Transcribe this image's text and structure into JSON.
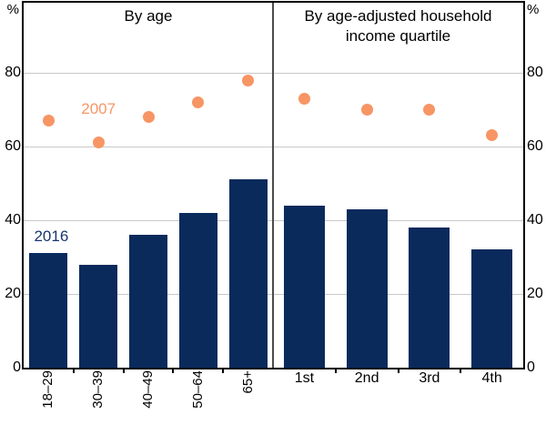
{
  "chart_data": {
    "type": "bar",
    "subtype": "grouped-panels with bar series (2016) and scatter dots (2007)",
    "unit": "%",
    "ylim": [
      0,
      99
    ],
    "yticks": [
      0,
      20,
      40,
      60,
      80
    ],
    "grid": true,
    "legend_position": "in-plot text labels",
    "axis_label_left": "%",
    "axis_label_right": "%",
    "colors": {
      "bar_2016": "#0a2a5c",
      "dot_2007": "#f79565",
      "label_2016": "#17366e",
      "label_2007": "#f79565",
      "gridline": "#c9c9c9",
      "frame": "#000000",
      "divider": "#4d4d4d"
    },
    "panels": [
      {
        "title": "By age",
        "categories": [
          "18–29",
          "30–39",
          "40–49",
          "50–64",
          "65+"
        ],
        "x_label_rotated": true,
        "series": [
          {
            "name": "2016",
            "type": "bar",
            "values": [
              31,
              28,
              36,
              42,
              51
            ]
          },
          {
            "name": "2007",
            "type": "scatter",
            "values": [
              67,
              61,
              68,
              72,
              78
            ]
          }
        ]
      },
      {
        "title": "By age-adjusted household income quartile",
        "categories": [
          "1st",
          "2nd",
          "3rd",
          "4th"
        ],
        "x_label_rotated": false,
        "series": [
          {
            "name": "2016",
            "type": "bar",
            "values": [
              44,
              43,
              38,
              32
            ]
          },
          {
            "name": "2007",
            "type": "scatter",
            "values": [
              73,
              70,
              70,
              63
            ]
          }
        ]
      }
    ],
    "series_labels": [
      {
        "text": "2007",
        "panel": 0,
        "cat_index": 1,
        "value": 70,
        "dx": 0,
        "color": "#f79565"
      },
      {
        "text": "2016",
        "panel": 0,
        "cat_index": 0,
        "value": 35.5,
        "dx": 3,
        "color": "#17366e"
      }
    ]
  }
}
